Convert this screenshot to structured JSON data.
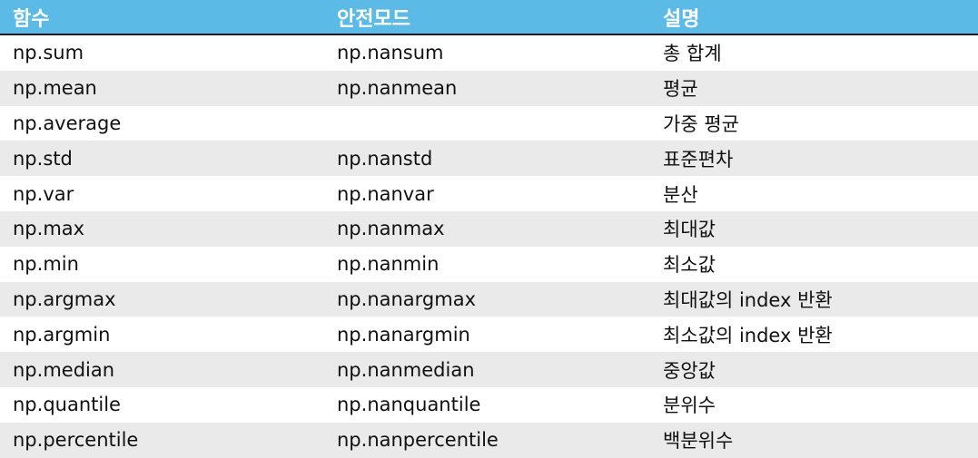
{
  "header": {
    "col1": "함수",
    "col2": "안전모드",
    "col3": "설명"
  },
  "rows": [
    {
      "func": "np.sum",
      "safe": "np.nansum",
      "desc": "총 합계"
    },
    {
      "func": "np.mean",
      "safe": "np.nanmean",
      "desc": "평균"
    },
    {
      "func": "np.average",
      "safe": "",
      "desc": "가중 평균"
    },
    {
      "func": "np.std",
      "safe": "np.nanstd",
      "desc": "표준편차"
    },
    {
      "func": "np.var",
      "safe": "np.nanvar",
      "desc": "분산"
    },
    {
      "func": "np.max",
      "safe": "np.nanmax",
      "desc": "최대값"
    },
    {
      "func": "np.min",
      "safe": "np.nanmin",
      "desc": "최소값"
    },
    {
      "func": "np.argmax",
      "safe": "np.nanargmax",
      "desc": "최대값의 index 반환"
    },
    {
      "func": "np.argmin",
      "safe": "np.nanargmin",
      "desc": "최소값의 index 반환"
    },
    {
      "func": "np.median",
      "safe": "np.nanmedian",
      "desc": "중앙값"
    },
    {
      "func": "np.quantile",
      "safe": "np.nanquantile",
      "desc": "분위수"
    },
    {
      "func": "np.percentile",
      "safe": "np.nanpercentile",
      "desc": "백분위수"
    }
  ],
  "colors": {
    "header_bg": "#5bbbe6",
    "stripe": "#eaeaea",
    "header_text": "#ffffff"
  }
}
